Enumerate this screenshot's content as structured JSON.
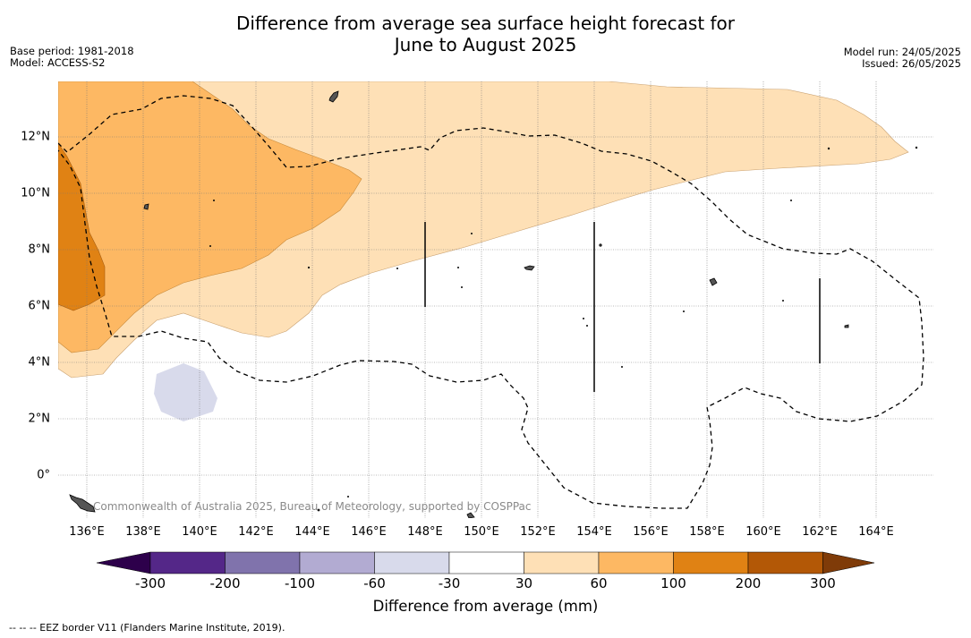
{
  "header": {
    "title_line1": "Difference from average sea surface height forecast for",
    "title_line2": "June to August 2025",
    "base_period": "Base period: 1981-2018",
    "model": "Model: ACCESS-S2",
    "model_run": "Model run: 24/05/2025",
    "issued": "Issued: 26/05/2025"
  },
  "map": {
    "credit": "Commonwealth of Australia 2025, Bureau of Meteorology, supported by COSPPac",
    "x_ticks": [
      "136°E",
      "138°E",
      "140°E",
      "142°E",
      "144°E",
      "146°E",
      "148°E",
      "150°E",
      "152°E",
      "154°E",
      "156°E",
      "158°E",
      "160°E",
      "162°E",
      "164°E"
    ],
    "y_ticks": [
      "12°N",
      "10°N",
      "8°N",
      "6°N",
      "4°N",
      "2°N",
      "0°"
    ],
    "grid": true,
    "colors": {
      "neg_300_plus": "#2d004b",
      "neg_300_200": "#542788",
      "neg_200_100": "#8073ac",
      "neg_100_60": "#b2abd2",
      "neg_60_30": "#d8daeb",
      "neg_30_30": "#ffffff",
      "pos_30_60": "#fee0b6",
      "pos_60_100": "#fdb863",
      "pos_100_200": "#e08214",
      "pos_200_300": "#b35806",
      "pos_300_plus": "#7f3b08"
    }
  },
  "colorbar": {
    "labels": [
      "-300",
      "-200",
      "-100",
      "-60",
      "-30",
      "30",
      "60",
      "100",
      "200",
      "300"
    ],
    "title": "Difference from average (mm)"
  },
  "footnote": "--  --  -- EEZ border V11 (Flanders Marine Institute, 2019)."
}
